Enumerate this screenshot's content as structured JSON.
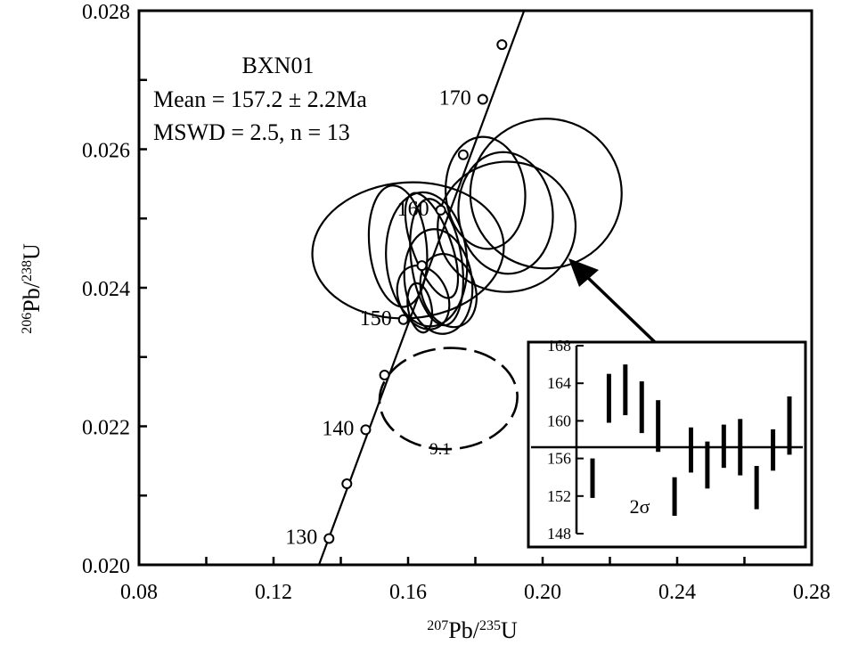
{
  "chart_data": {
    "type": "scatter",
    "subtype": "concordia-diagram",
    "title": "",
    "sample": "BXN01",
    "mean_text": "Mean = 157.2 ± 2.2Ma",
    "mswd_text": "MSWD = 2.5, n = 13",
    "x_axis": {
      "pre": "207",
      "base1": "Pb/",
      "sup2": "235",
      "base2": "U",
      "min": 0.08,
      "max": 0.28,
      "ticks": [
        0.08,
        0.12,
        0.16,
        0.2,
        0.24,
        0.28
      ],
      "tick_labels": [
        "0.08",
        "0.12",
        "0.16",
        "0.20",
        "0.24",
        "0.28"
      ]
    },
    "y_axis": {
      "pre": "206",
      "base1": "Pb/",
      "sup2": "238",
      "base2": "U",
      "min": 0.02,
      "max": 0.028,
      "ticks": [
        0.02,
        0.022,
        0.024,
        0.026,
        0.028
      ],
      "tick_labels": [
        "0.020",
        "0.022",
        "0.024",
        "0.026",
        "0.028"
      ]
    },
    "concordia": {
      "line": [
        [
          0.1335,
          0.02
        ],
        [
          0.1945,
          0.028
        ]
      ],
      "markers": [
        {
          "age": "130",
          "x": 0.1365,
          "y": 0.02038,
          "labeled": true
        },
        {
          "age": "",
          "x": 0.1418,
          "y": 0.02117,
          "labeled": false
        },
        {
          "age": "140",
          "x": 0.1474,
          "y": 0.02195,
          "labeled": true
        },
        {
          "age": "",
          "x": 0.153,
          "y": 0.02274,
          "labeled": false
        },
        {
          "age": "150",
          "x": 0.1586,
          "y": 0.02354,
          "labeled": true
        },
        {
          "age": "",
          "x": 0.1641,
          "y": 0.02432,
          "labeled": false
        },
        {
          "age": "160",
          "x": 0.1697,
          "y": 0.02512,
          "labeled": true
        },
        {
          "age": "",
          "x": 0.1764,
          "y": 0.02592,
          "labeled": false
        },
        {
          "age": "170",
          "x": 0.1822,
          "y": 0.02672,
          "labeled": true
        },
        {
          "age": "",
          "x": 0.1879,
          "y": 0.02751,
          "labeled": false
        }
      ]
    },
    "ellipses": [
      {
        "cx": 0.183,
        "cy": 0.02537,
        "rx": 0.0118,
        "ry": 0.00081,
        "rot": -5
      },
      {
        "cx": 0.201,
        "cy": 0.02536,
        "rx": 0.0225,
        "ry": 0.00108,
        "rot": -9
      },
      {
        "cx": 0.1893,
        "cy": 0.02488,
        "rx": 0.0205,
        "ry": 0.00094,
        "rot": -4
      },
      {
        "cx": 0.189,
        "cy": 0.02508,
        "rx": 0.014,
        "ry": 0.00088,
        "rot": -6
      },
      {
        "cx": 0.16,
        "cy": 0.02454,
        "rx": 0.0285,
        "ry": 0.00098,
        "rot": -4
      },
      {
        "cx": 0.157,
        "cy": 0.0246,
        "rx": 0.0085,
        "ry": 0.00088,
        "rot": -6
      },
      {
        "cx": 0.1655,
        "cy": 0.02441,
        "rx": 0.012,
        "ry": 0.00097,
        "rot": -5
      },
      {
        "cx": 0.167,
        "cy": 0.02461,
        "rx": 0.0058,
        "ry": 0.0008,
        "rot": -20
      },
      {
        "cx": 0.1685,
        "cy": 0.02437,
        "rx": 0.0075,
        "ry": 0.00092,
        "rot": -8
      },
      {
        "cx": 0.169,
        "cy": 0.02409,
        "rx": 0.01,
        "ry": 0.00076,
        "rot": -8
      },
      {
        "cx": 0.1645,
        "cy": 0.02386,
        "rx": 0.0072,
        "ry": 0.00048,
        "rot": -25
      },
      {
        "cx": 0.172,
        "cy": 0.02396,
        "rx": 0.008,
        "ry": 0.00054,
        "rot": -18
      },
      {
        "cx": 0.1635,
        "cy": 0.02371,
        "rx": 0.0035,
        "ry": 0.00036,
        "rot": -10
      }
    ],
    "excluded": {
      "cx": 0.172,
      "cy": 0.0224,
      "rx": 0.0205,
      "ry": 0.00073,
      "rot": -3,
      "label": "9.1"
    },
    "inset": {
      "type": "weighted-mean",
      "yticks": [
        148,
        152,
        156,
        160,
        164,
        168
      ],
      "mean": 157.2,
      "sigma_label": "2σ",
      "bars": [
        [
          151.8,
          156.0
        ],
        [
          159.8,
          165.0
        ],
        [
          160.6,
          166.0
        ],
        [
          158.7,
          164.2
        ],
        [
          156.7,
          162.2
        ],
        [
          149.9,
          154.0
        ],
        [
          154.5,
          159.3
        ],
        [
          152.8,
          157.8
        ],
        [
          155.0,
          159.6
        ],
        [
          154.2,
          160.2
        ],
        [
          150.6,
          155.2
        ],
        [
          154.7,
          159.1
        ],
        [
          156.4,
          162.6
        ]
      ]
    },
    "grid": false,
    "legend": "none"
  }
}
